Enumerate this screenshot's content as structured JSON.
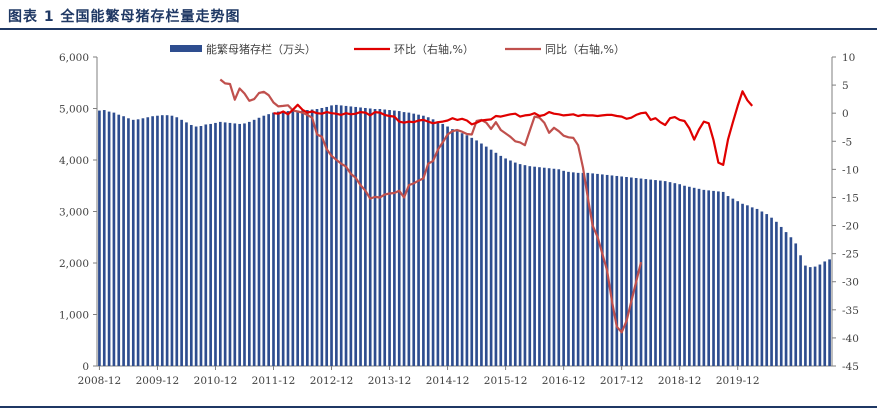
{
  "header": {
    "title": "图表 1  全国能繁母猪存栏量走势图"
  },
  "chart_data": {
    "type": "bar+line",
    "title": "全国能繁母猪存栏量走势图",
    "x_tick_labels": [
      "2008-12",
      "2009-12",
      "2010-12",
      "2011-12",
      "2012-12",
      "2013-12",
      "2014-12",
      "2015-12",
      "2016-12",
      "2017-12",
      "2018-12",
      "2019-12"
    ],
    "y_left": {
      "range": [
        0,
        6000
      ],
      "ticks": [
        "0",
        "1,000",
        "2,000",
        "3,000",
        "4,000",
        "5,000",
        "6,000"
      ]
    },
    "y_right": {
      "range": [
        -45,
        10
      ],
      "ticks": [
        "10",
        "5",
        "0",
        "-5",
        "-10",
        "-15",
        "-20",
        "-25",
        "-30",
        "-35",
        "-40",
        "-45"
      ]
    },
    "legend": [
      "能繁母猪存栏（万头）",
      "环比（右轴,%）",
      "同比（右轴,%）"
    ],
    "colors": {
      "bars": "#2e4d8f",
      "mom": "#e00000",
      "yoy": "#c0504d"
    },
    "series": [
      {
        "name": "能繁母猪存栏（万头）",
        "type": "bar",
        "start": "2008-12",
        "values": [
          4960,
          4970,
          4940,
          4920,
          4880,
          4850,
          4810,
          4780,
          4790,
          4810,
          4830,
          4850,
          4860,
          4870,
          4870,
          4860,
          4830,
          4780,
          4730,
          4680,
          4650,
          4660,
          4690,
          4700,
          4720,
          4740,
          4730,
          4720,
          4710,
          4700,
          4710,
          4740,
          4780,
          4820,
          4860,
          4890,
          4920,
          4940,
          4950,
          4950,
          4950,
          4960,
          4960,
          4970,
          4980,
          4990,
          5010,
          5030,
          5060,
          5070,
          5060,
          5050,
          5040,
          5030,
          5020,
          5010,
          5000,
          4990,
          4990,
          4980,
          4970,
          4960,
          4950,
          4930,
          4920,
          4900,
          4880,
          4860,
          4830,
          4790,
          4750,
          4700,
          4650,
          4600,
          4560,
          4520,
          4480,
          4430,
          4380,
          4320,
          4260,
          4200,
          4140,
          4080,
          4030,
          3990,
          3950,
          3920,
          3900,
          3880,
          3870,
          3860,
          3850,
          3840,
          3830,
          3820,
          3790,
          3770,
          3760,
          3750,
          3750,
          3750,
          3740,
          3730,
          3720,
          3710,
          3700,
          3690,
          3680,
          3670,
          3660,
          3650,
          3640,
          3630,
          3620,
          3610,
          3600,
          3590,
          3570,
          3550,
          3530,
          3500,
          3480,
          3460,
          3440,
          3420,
          3410,
          3400,
          3390,
          3380,
          3300,
          3250,
          3200,
          3150,
          3120,
          3080,
          3050,
          3000,
          2950,
          2880,
          2800,
          2700,
          2600,
          2500,
          2380,
          2150,
          1950,
          1920,
          1930,
          1970,
          2030,
          2070
        ]
      },
      {
        "name": "环比（右轴,%）",
        "type": "line",
        "start": "2011-12",
        "values": [
          0.0,
          -0.1,
          0.3,
          -0.2,
          0.6,
          1.5,
          0.6,
          0.1,
          0.3,
          0.0,
          -0.1,
          0.2,
          0.0,
          -0.1,
          -0.3,
          0.0,
          -0.2,
          -0.1,
          0.2,
          0.1,
          -0.4,
          0.2,
          0.1,
          -0.3,
          -0.5,
          -0.6,
          -1.5,
          -1.7,
          -1.5,
          -1.6,
          -1.3,
          -1.2,
          -1.5,
          -1.8,
          -1.6,
          -1.5,
          -1.3,
          -0.9,
          -1.2,
          -1.0,
          -1.3,
          -2.0,
          -1.7,
          -1.3,
          -1.2,
          -1.1,
          -0.5,
          -0.6,
          -0.4,
          -0.2,
          -0.1,
          -0.6,
          -0.4,
          -0.3,
          0.0,
          -0.5,
          -0.3,
          0.2,
          -0.1,
          -0.2,
          -0.4,
          -0.3,
          -0.2,
          -0.5,
          -0.3,
          -0.4,
          -0.4,
          -0.5,
          -0.4,
          -0.3,
          -0.3,
          -0.5,
          -0.6,
          -1.0,
          -0.8,
          -0.3,
          0.0,
          0.1,
          -1.2,
          -0.9,
          -1.6,
          -2.1,
          -0.9,
          -0.7,
          -1.2,
          -1.4,
          -2.7,
          -4.7,
          -2.9,
          -1.5,
          -1.8,
          -4.8,
          -8.8,
          -9.2,
          -4.7,
          -1.6,
          1.3,
          3.9,
          2.3,
          1.3
        ]
      },
      {
        "name": "同比（右轴,%）",
        "type": "line",
        "start": "2011-01",
        "values": [
          6.0,
          5.3,
          5.2,
          2.4,
          4.4,
          3.5,
          2.2,
          2.5,
          3.6,
          3.8,
          3.2,
          1.9,
          1.2,
          1.3,
          1.4,
          0.5,
          0.3,
          0.1,
          -0.3,
          -0.8,
          -3.8,
          -4.2,
          -6.4,
          -7.6,
          -8.3,
          -9.0,
          -9.5,
          -10.8,
          -11.5,
          -12.8,
          -13.8,
          -15.2,
          -14.9,
          -15.0,
          -14.5,
          -14.3,
          -14.2,
          -13.8,
          -15.0,
          -12.8,
          -12.5,
          -12.0,
          -11.6,
          -9.0,
          -8.5,
          -6.5,
          -5.2,
          -3.8,
          -3.2,
          -3.0,
          -3.3,
          -3.7,
          -3.8,
          -1.4,
          -1.2,
          -1.7,
          -2.8,
          -1.6,
          -3.0,
          -3.6,
          -4.2,
          -5.0,
          -5.2,
          -5.7,
          -3.1,
          -0.6,
          -0.8,
          -1.7,
          -3.5,
          -2.6,
          -3.2,
          -4.0,
          -4.3,
          -4.4,
          -5.7,
          -9.7,
          -15.0,
          -20.0,
          -22.0,
          -25.0,
          -28.0,
          -33.5,
          -38.0,
          -39.0,
          -37.0,
          -33.5,
          -30.0,
          -26.5
        ]
      }
    ]
  }
}
